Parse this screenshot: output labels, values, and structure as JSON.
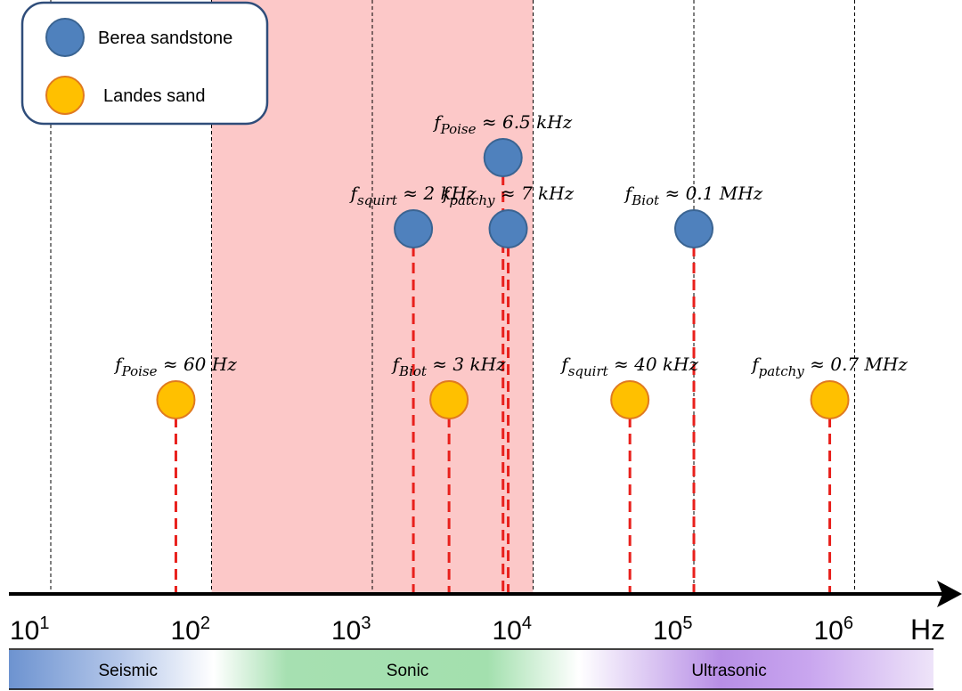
{
  "chart_data": {
    "type": "scatter",
    "x_scale": "log",
    "x_unit": "Hz",
    "xlim": [
      10,
      1000000
    ],
    "tick_labels": [
      {
        "value": 10,
        "base": "10",
        "exp": "1"
      },
      {
        "value": 100,
        "base": "10",
        "exp": "2"
      },
      {
        "value": 1000,
        "base": "10",
        "exp": "3"
      },
      {
        "value": 10000,
        "base": "10",
        "exp": "4"
      },
      {
        "value": 100000,
        "base": "10",
        "exp": "5"
      },
      {
        "value": 1000000,
        "base": "10",
        "exp": "6"
      }
    ],
    "highlight_range": [
      100,
      10000
    ],
    "highlight_color": "#fcc8c8",
    "legend": {
      "position": "top-left",
      "entries": [
        {
          "label": "Berea sandstone",
          "fill": "#4f81bd",
          "stroke": "#3a6492"
        },
        {
          "label": "Landes sand",
          "fill": "#ffc000",
          "stroke": "#e07a1f"
        }
      ]
    },
    "series": [
      {
        "name": "Berea sandstone",
        "points": [
          {
            "x": 1800,
            "tier": 2,
            "sym": "f",
            "sub": "squirt",
            "rest": " ≈ 2 kHz"
          },
          {
            "x": 6500,
            "tier": 1,
            "sym": "f",
            "sub": "Poise",
            "rest": " ≈ 6.5 kHz"
          },
          {
            "x": 7000,
            "tier": 2,
            "sym": "f",
            "sub": "patchy",
            "rest": " ≈ 7 kHz"
          },
          {
            "x": 100000,
            "tier": 2,
            "sym": "f",
            "sub": "Biot",
            "rest": " ≈ 0.1 MHz"
          }
        ]
      },
      {
        "name": "Landes sand",
        "points": [
          {
            "x": 60,
            "tier": 3,
            "sym": "f",
            "sub": "Poise",
            "rest": " ≈ 60 Hz"
          },
          {
            "x": 3000,
            "tier": 3,
            "sym": "f",
            "sub": "Biot",
            "rest": " ≈ 3 kHz"
          },
          {
            "x": 40000,
            "tier": 3,
            "sym": "f",
            "sub": "squirt",
            "rest": " ≈ 40 kHz"
          },
          {
            "x": 700000,
            "tier": 3,
            "sym": "f",
            "sub": "patchy",
            "rest": " ≈ 0.7 MHz"
          }
        ]
      }
    ],
    "bands": [
      {
        "label": "Seismic",
        "range": [
          10,
          100
        ],
        "color": "#5b86c9"
      },
      {
        "label": "Sonic",
        "range": [
          100,
          30000
        ],
        "color": "#5cc46f"
      },
      {
        "label": "Ultrasonic",
        "range": [
          30000,
          1000000
        ],
        "color": "#9b6bd6"
      }
    ]
  }
}
